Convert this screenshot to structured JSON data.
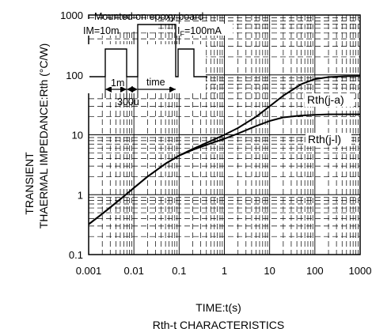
{
  "chart_data": {
    "type": "line",
    "x_scale": "log",
    "y_scale": "log",
    "xlim": [
      0.001,
      1000
    ],
    "ylim": [
      0.1,
      1000
    ],
    "x_ticks": [
      "0.001",
      "0.01",
      "0.1",
      "1",
      "10",
      "100",
      "1000"
    ],
    "y_ticks": [
      "0.1",
      "1",
      "10",
      "100",
      "1000"
    ],
    "xlabel": "TIME:t(s)",
    "ylabel_line1": "TRANSIENT",
    "ylabel_line2": "THAERMAL IMPEDANCE:Rth (°C/W)",
    "caption": "Rth-t CHARACTERISTICS",
    "grid": true,
    "series": [
      {
        "name": "Rth(j-a)",
        "x": [
          0.001,
          0.002,
          0.005,
          0.01,
          0.02,
          0.05,
          0.1,
          0.2,
          0.5,
          1,
          2,
          5,
          10,
          20,
          50,
          100,
          200,
          500,
          1000
        ],
        "y": [
          0.32,
          0.48,
          0.84,
          1.3,
          2.0,
          3.3,
          4.5,
          5.8,
          7.9,
          10,
          13,
          20,
          30,
          45,
          70,
          85,
          92,
          95,
          96
        ]
      },
      {
        "name": "Rth(j-l)",
        "x": [
          0.001,
          0.002,
          0.005,
          0.01,
          0.02,
          0.05,
          0.1,
          0.2,
          0.5,
          1,
          2,
          5,
          10,
          20,
          50,
          100,
          200,
          500,
          1000
        ],
        "y": [
          0.32,
          0.48,
          0.84,
          1.3,
          2.0,
          3.3,
          4.5,
          5.6,
          7.2,
          8.6,
          10.5,
          14,
          17,
          19.5,
          21,
          21.5,
          22,
          22,
          22
        ]
      }
    ],
    "annotations": {
      "board": "Mounted on epoxy board",
      "im": "IM=10m",
      "if_main": "I",
      "if_sub": "F",
      "if_value": "=100mA",
      "t1": "1m",
      "t300": "300u",
      "time": "time"
    }
  }
}
